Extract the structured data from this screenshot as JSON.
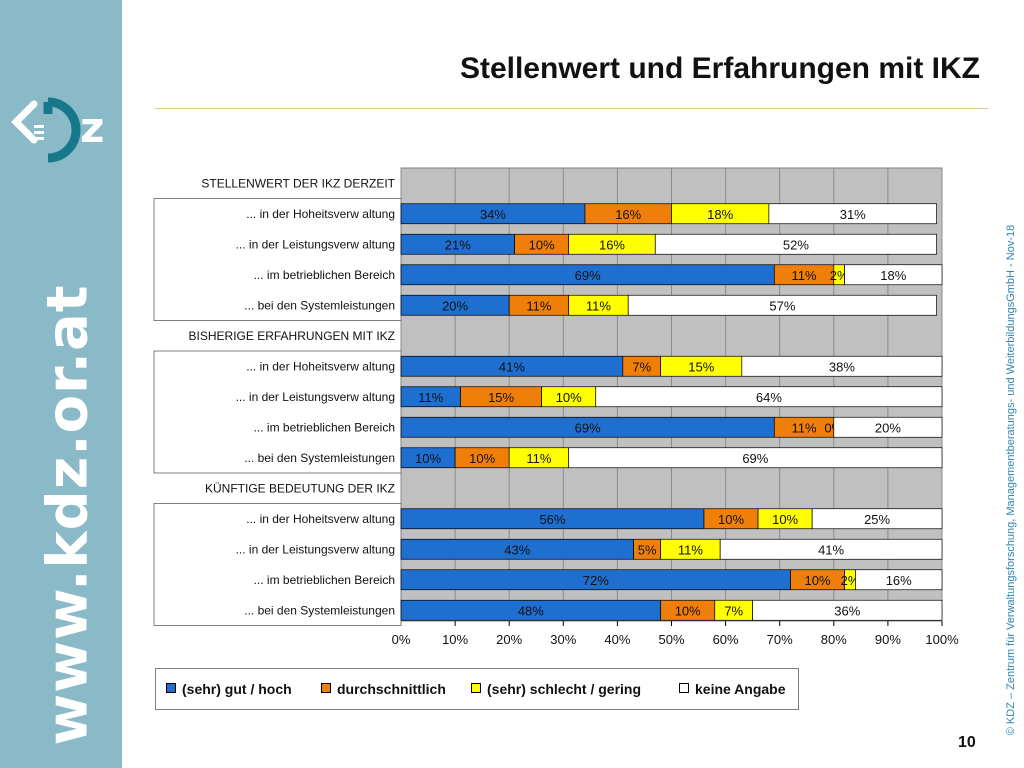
{
  "header": {
    "title": "Stellenwert und Erfahrungen mit IKZ",
    "page_number": "10"
  },
  "sidebar": {
    "logo_icon": "kdz-logo-icon",
    "url": "www.kdz.or.at"
  },
  "footer": {
    "copyright": "© KDZ – Zentrum für Verwaltungsforschung, Managementberatungs- und WeiterbildungsGmbH - Nov-18"
  },
  "colors": {
    "sidebar": "#8ab9c8",
    "blue": "#1f6fd0",
    "orange": "#f07f09",
    "yellow": "#ffff00",
    "white": "#ffffff",
    "plot_bg": "#c0c0c0"
  },
  "chart_data": {
    "type": "bar",
    "orientation": "horizontal",
    "stacked": true,
    "grid": true,
    "legend_position": "bottom",
    "xlim": [
      0,
      100
    ],
    "x_ticks": [
      "0%",
      "10%",
      "20%",
      "30%",
      "40%",
      "50%",
      "60%",
      "70%",
      "80%",
      "90%",
      "100%"
    ],
    "series": [
      {
        "name": "(sehr) gut / hoch",
        "color": "#1f6fd0"
      },
      {
        "name": "durchschnittlich",
        "color": "#f07f09"
      },
      {
        "name": "(sehr) schlecht / gering",
        "color": "#ffff00"
      },
      {
        "name": "keine Angabe",
        "color": "#ffffff"
      }
    ],
    "groups": [
      {
        "label": "STELLENWERT DER IKZ DERZEIT",
        "rows": [
          {
            "label": "... in der Hoheitsverw altung",
            "values": [
              34,
              16,
              18,
              31
            ]
          },
          {
            "label": "... in der Leistungsverw altung",
            "values": [
              21,
              10,
              16,
              52
            ]
          },
          {
            "label": "... im betrieblichen Bereich",
            "values": [
              69,
              11,
              2,
              18
            ]
          },
          {
            "label": "... bei den Systemleistungen",
            "values": [
              20,
              11,
              11,
              57
            ]
          }
        ]
      },
      {
        "label": "BISHERIGE ERFAHRUNGEN MIT IKZ",
        "rows": [
          {
            "label": "... in der Hoheitsverw altung",
            "values": [
              41,
              7,
              15,
              38
            ]
          },
          {
            "label": "... in der Leistungsverw altung",
            "values": [
              11,
              15,
              10,
              64
            ]
          },
          {
            "label": "... im betrieblichen Bereich",
            "values": [
              69,
              11,
              0,
              20
            ]
          },
          {
            "label": "... bei den Systemleistungen",
            "values": [
              10,
              10,
              11,
              69
            ]
          }
        ]
      },
      {
        "label": "KÜNFTIGE BEDEUTUNG DER IKZ",
        "rows": [
          {
            "label": "... in der Hoheitsverw altung",
            "values": [
              56,
              10,
              10,
              25
            ]
          },
          {
            "label": "... in der Leistungsverw altung",
            "values": [
              43,
              5,
              11,
              41
            ]
          },
          {
            "label": "... im betrieblichen Bereich",
            "values": [
              72,
              10,
              2,
              16
            ]
          },
          {
            "label": "... bei den Systemleistungen",
            "values": [
              48,
              10,
              7,
              36
            ]
          }
        ]
      }
    ]
  }
}
